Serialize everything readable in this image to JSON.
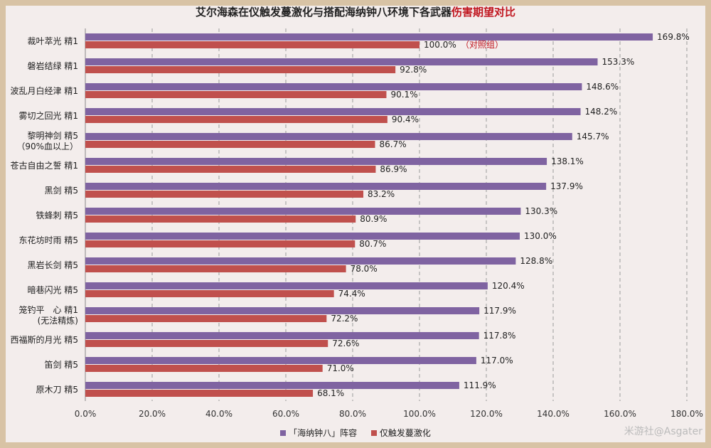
{
  "title": {
    "main": "艾尔海森在仪触发蔓激化与搭配海纳钟八环境下各武器",
    "highlight": "伤害期望对比"
  },
  "watermark": "米游社@Asgater",
  "colors": {
    "series1": "#7f63a1",
    "series2": "#c0504d",
    "accent": "#c0151e"
  },
  "chart_data": {
    "type": "bar",
    "orientation": "horizontal",
    "title": "艾尔海森在仪触发蔓激化与搭配海纳钟八环境下各武器伤害期望对比",
    "categories": [
      [
        "裁叶萃光 精1"
      ],
      [
        "磐岩结绿 精1"
      ],
      [
        "波乱月白经津 精1"
      ],
      [
        "雾切之回光 精1"
      ],
      [
        "黎明神剑 精5",
        "（90%血以上）"
      ],
      [
        "苍古自由之誓 精1"
      ],
      [
        "黑剑 精5"
      ],
      [
        "铁蜂刺 精5"
      ],
      [
        "东花坊时雨 精5"
      ],
      [
        "黑岩长剑 精5"
      ],
      [
        "暗巷闪光 精5"
      ],
      [
        "笼钓平　心 精1",
        "(无法精炼)"
      ],
      [
        "西福斯的月光 精5"
      ],
      [
        "笛剑 精5"
      ],
      [
        "原木刀 精5"
      ]
    ],
    "series": [
      {
        "name": "「海纳钟八」阵容",
        "values": [
          169.8,
          153.3,
          148.6,
          148.2,
          145.7,
          138.1,
          137.9,
          130.3,
          130.0,
          128.8,
          120.4,
          117.9,
          117.8,
          117.0,
          111.9
        ],
        "labels": [
          "169.8%",
          "153.3%",
          "148.6%",
          "148.2%",
          "145.7%",
          "138.1%",
          "137.9%",
          "130.3%",
          "130.0%",
          "128.8%",
          "120.4%",
          "117.9%",
          "117.8%",
          "117.0%",
          "111.9%"
        ]
      },
      {
        "name": "仅触发蔓激化",
        "values": [
          100.0,
          92.8,
          90.1,
          90.4,
          86.7,
          86.9,
          83.2,
          80.9,
          80.7,
          78.0,
          74.4,
          72.2,
          72.6,
          71.0,
          68.1
        ],
        "labels": [
          "100.0%",
          "92.8%",
          "90.1%",
          "90.4%",
          "86.7%",
          "86.9%",
          "83.2%",
          "80.9%",
          "80.7%",
          "78.0%",
          "74.4%",
          "72.2%",
          "72.6%",
          "71.0%",
          "68.1%"
        ]
      }
    ],
    "annotation": {
      "category_index": 0,
      "series_index": 1,
      "text": "（对照组）"
    },
    "xlim": [
      0,
      180
    ],
    "xticks": [
      "0.0%",
      "20.0%",
      "40.0%",
      "60.0%",
      "80.0%",
      "100.0%",
      "120.0%",
      "140.0%",
      "160.0%",
      "180.0%"
    ],
    "grid": true,
    "legend": "bottom"
  }
}
